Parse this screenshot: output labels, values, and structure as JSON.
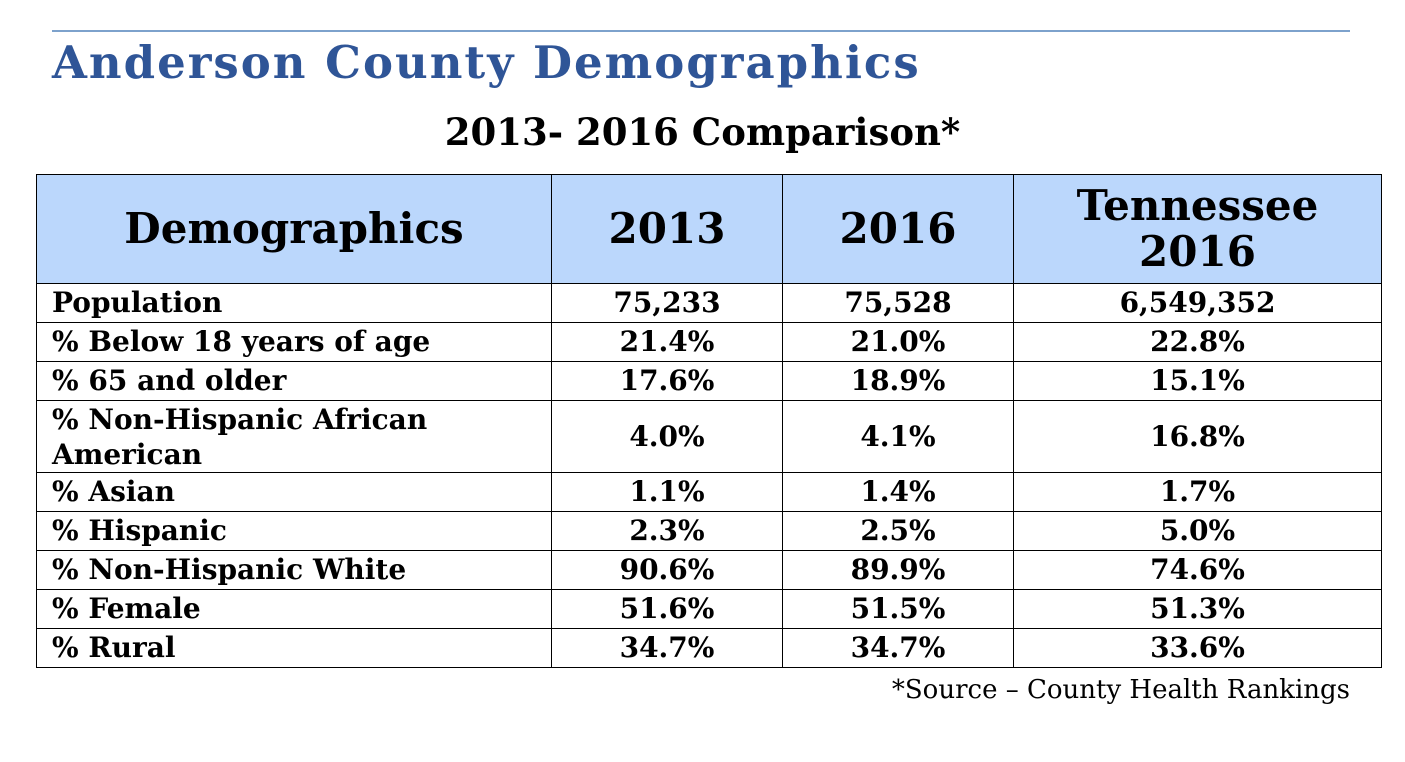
{
  "title": "Anderson County Demographics",
  "subtitle": "2013- 2016 Comparison*",
  "colors": {
    "title": "#2f5597",
    "header_bg": "#bbd7fc"
  },
  "table": {
    "headers": [
      "Demographics",
      "2013",
      "2016",
      "Tennessee 2016"
    ],
    "rows": [
      [
        "Population",
        "75,233",
        "75,528",
        "6,549,352"
      ],
      [
        "% Below 18 years of age",
        "21.4%",
        "21.0%",
        "22.8%"
      ],
      [
        "% 65 and older",
        "17.6%",
        "18.9%",
        "15.1%"
      ],
      [
        "% Non-Hispanic African American",
        "4.0%",
        "4.1%",
        "16.8%"
      ],
      [
        "% Asian",
        "1.1%",
        "1.4%",
        "1.7%"
      ],
      [
        "% Hispanic",
        "2.3%",
        "2.5%",
        "5.0%"
      ],
      [
        "% Non-Hispanic White",
        "90.6%",
        "89.9%",
        "74.6%"
      ],
      [
        "% Female",
        "51.6%",
        "51.5%",
        "51.3%"
      ],
      [
        "% Rural",
        "34.7%",
        "34.7%",
        "33.6%"
      ]
    ]
  },
  "source": "*Source – County Health Rankings"
}
